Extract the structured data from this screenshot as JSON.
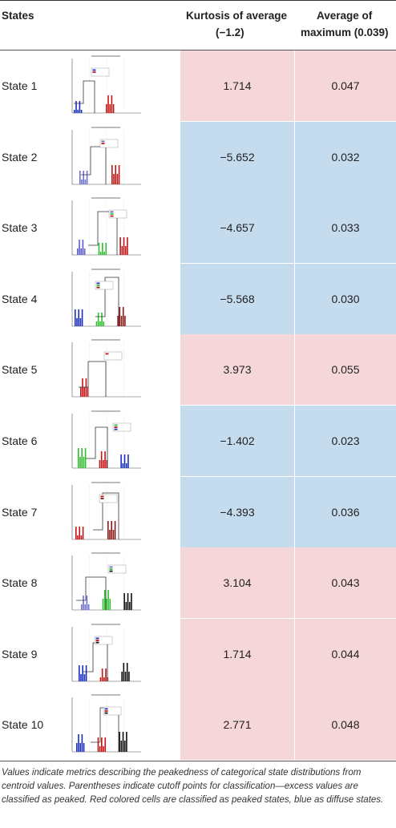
{
  "header": {
    "states": "States",
    "kurtosis_line1": "Kurtosis of average",
    "kurtosis_line2": "(−1.2)",
    "max_line1": "Average of",
    "max_line2": "maximum (0.039)"
  },
  "colors": {
    "peaked": "#f6d7d9",
    "diffuse": "#c5dbee"
  },
  "rows": [
    {
      "state": "State 1",
      "kurtosis": "1.714",
      "max": "0.047",
      "class": "peaked"
    },
    {
      "state": "State 2",
      "kurtosis": "−5.652",
      "max": "0.032",
      "class": "diffuse"
    },
    {
      "state": "State 3",
      "kurtosis": "−4.657",
      "max": "0.033",
      "class": "diffuse"
    },
    {
      "state": "State 4",
      "kurtosis": "−5.568",
      "max": "0.030",
      "class": "diffuse"
    },
    {
      "state": "State 5",
      "kurtosis": "3.973",
      "max": "0.055",
      "class": "peaked"
    },
    {
      "state": "State 6",
      "kurtosis": "−1.402",
      "max": "0.023",
      "class": "diffuse"
    },
    {
      "state": "State 7",
      "kurtosis": "−4.393",
      "max": "0.036",
      "class": "diffuse"
    },
    {
      "state": "State 8",
      "kurtosis": "3.104",
      "max": "0.043",
      "class": "peaked"
    },
    {
      "state": "State 9",
      "kurtosis": "1.714",
      "max": "0.044",
      "class": "peaked"
    },
    {
      "state": "State 10",
      "kurtosis": "2.771",
      "max": "0.048",
      "class": "peaked"
    }
  ],
  "caption": "Values indicate metrics describing the peakedness of categorical state distributions from centroid values. Parentheses indicate cutoff points for classification—excess values are classified as peaked. Red colored cells are classified as peaked states, blue as diffuse states."
}
